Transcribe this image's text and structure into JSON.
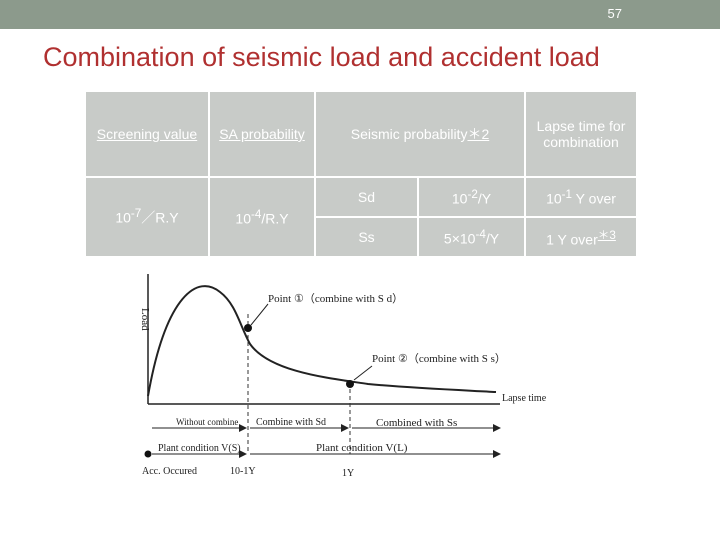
{
  "header": {
    "page_number": "57"
  },
  "title": "Combination of seismic load and accident load",
  "table": {
    "h_screening": "Screening value",
    "h_sa": "SA probability",
    "h_seismic": "Seismic probability",
    "h_seismic_note": "＊2",
    "h_lapse": "Lapse time for combination",
    "screening_base": "10",
    "screening_exp": "-7",
    "screening_unit": "／R.Y",
    "sa_base": "10",
    "sa_exp": "-4",
    "sa_unit": "/R.Y",
    "rows": [
      {
        "label": "Sd",
        "prob_base": "10",
        "prob_exp": "-2",
        "prob_unit": "/Y",
        "lapse_base": "10",
        "lapse_exp": "-1",
        "lapse_unit": " Y over"
      },
      {
        "label": "Ss",
        "prob_pre": "5×10",
        "prob_exp": "-4",
        "prob_unit": "/Y",
        "lapse_text": "1 Y over",
        "lapse_note": "＊3"
      }
    ]
  },
  "figure": {
    "y_axis_label": "Load",
    "x_axis_label": "Lapse time",
    "point1": "Point ①（combine with S d）",
    "point2": "Point ②（combine with S s）",
    "seg_without": "Without combine",
    "seg_combine_sd": "Combine with Sd",
    "seg_combine_ss": "Combined with Ss",
    "plant_cond_s": "Plant condition V(S)",
    "plant_cond_l": "Plant condition V(L)",
    "acc_occured": "Acc. Occured",
    "time_short": "10-1Y",
    "time_long": "1Y"
  }
}
